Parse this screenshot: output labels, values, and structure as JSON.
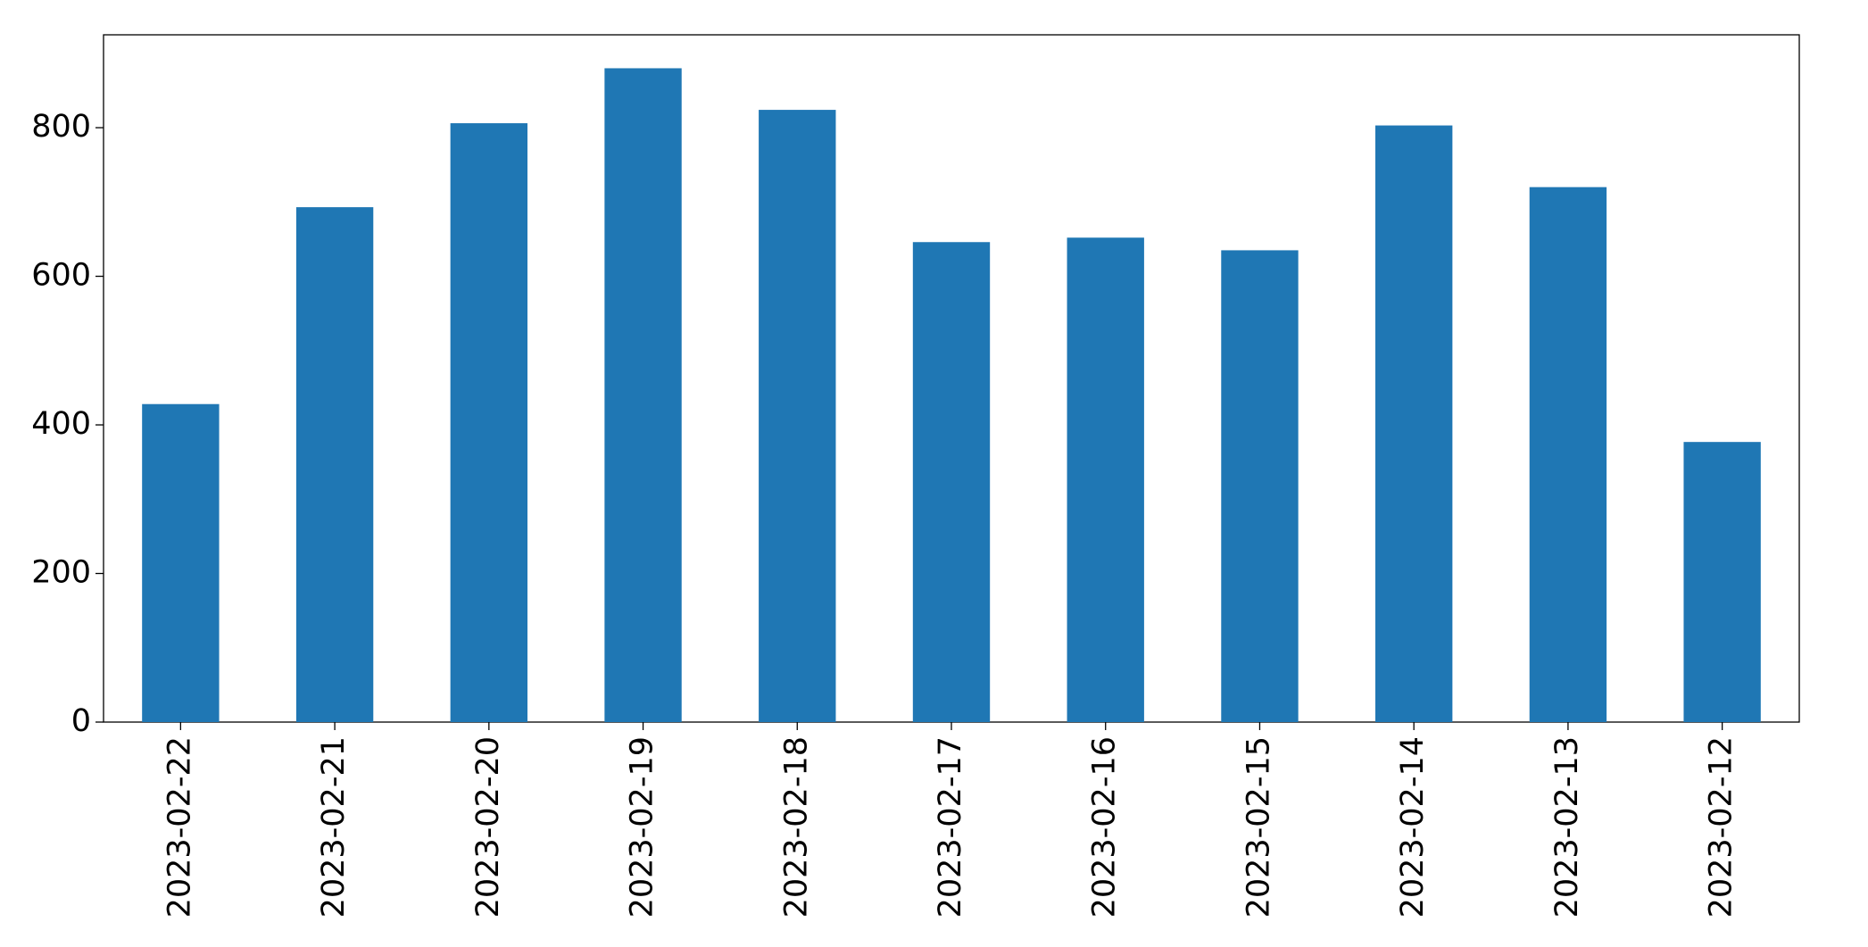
{
  "chart_data": {
    "type": "bar",
    "categories": [
      "2023-02-22",
      "2023-02-21",
      "2023-02-20",
      "2023-02-19",
      "2023-02-18",
      "2023-02-17",
      "2023-02-16",
      "2023-02-15",
      "2023-02-14",
      "2023-02-13",
      "2023-02-12"
    ],
    "values": [
      428,
      693,
      806,
      880,
      824,
      646,
      652,
      635,
      803,
      720,
      377
    ],
    "color": "#1f77b4",
    "ylim": [
      0,
      925
    ],
    "yticks": [
      0,
      200,
      400,
      600,
      800
    ],
    "grid": false
  }
}
